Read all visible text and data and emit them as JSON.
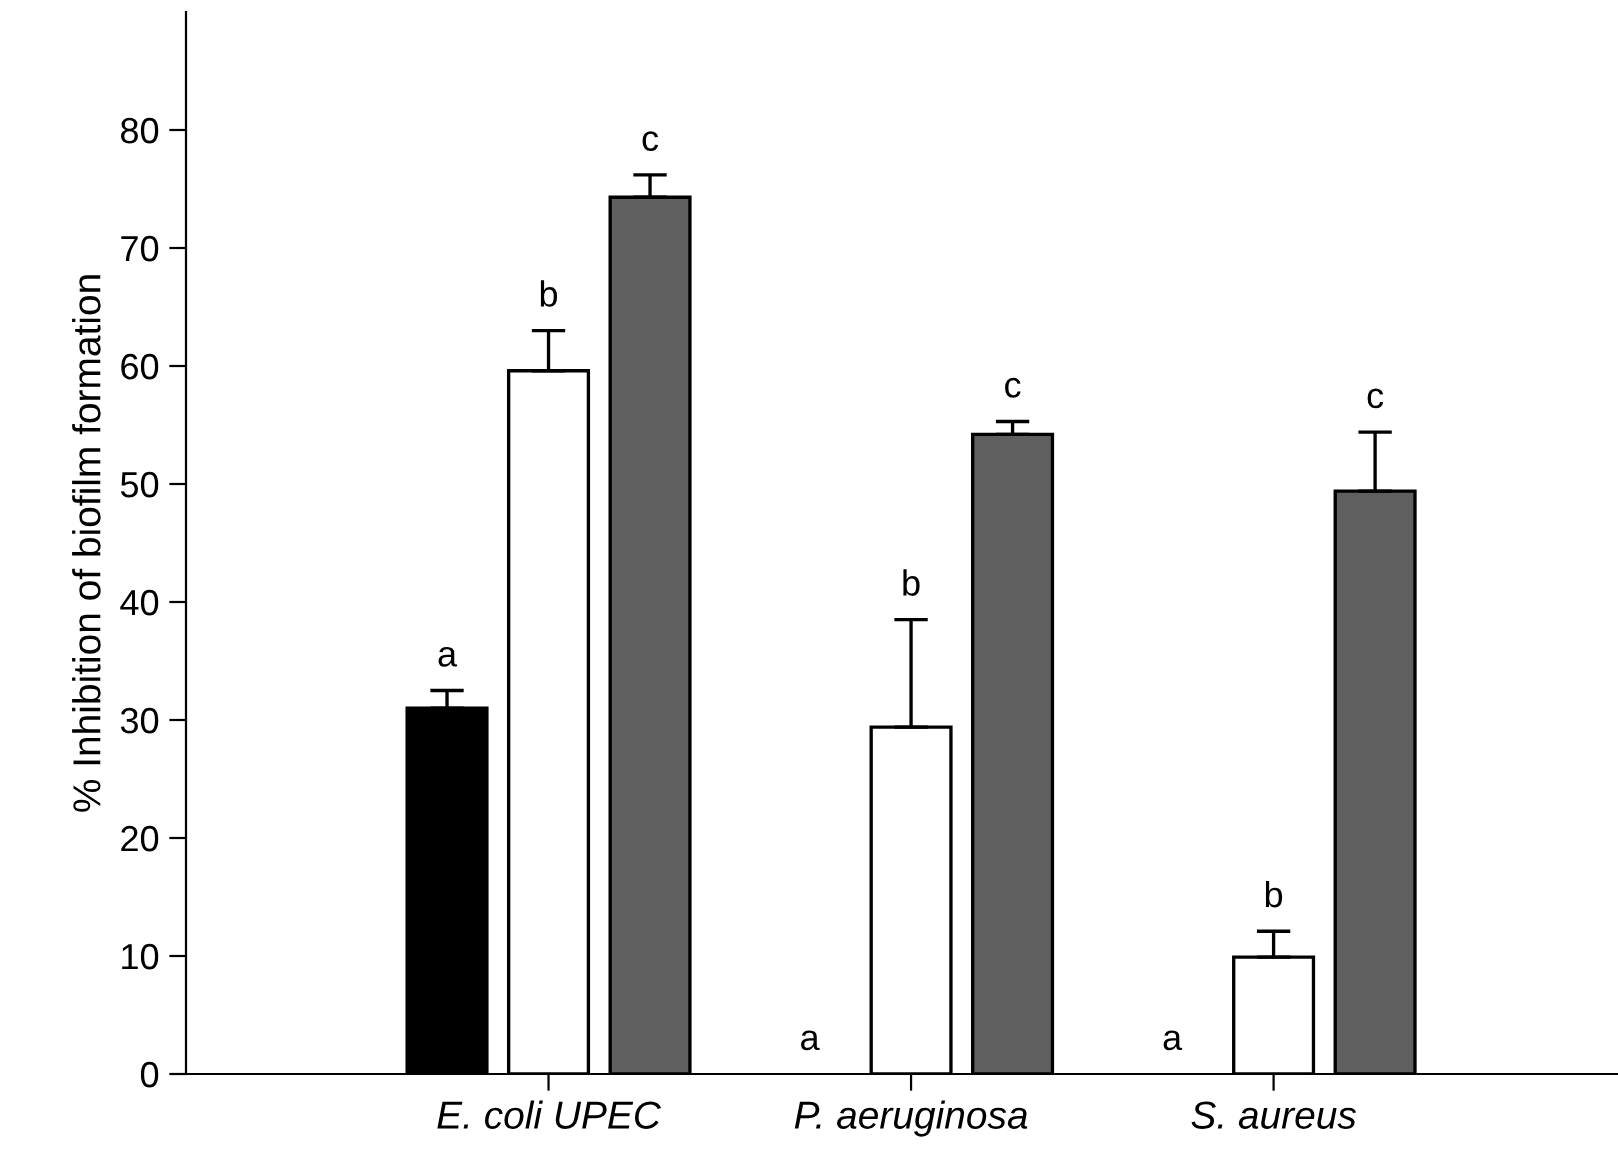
{
  "chart_data": {
    "type": "bar",
    "ylabel": "% Inhibition of biofilm formation",
    "categories": [
      "E. coli UPEC",
      "P. aeruginosa",
      "S. aureus"
    ],
    "series": [
      {
        "color": "#000000",
        "values": [
          31.0,
          0,
          0
        ],
        "errors": [
          [
            31.0,
            32.5
          ],
          null,
          null
        ]
      },
      {
        "color": "#ffffff",
        "values": [
          59.6,
          29.4,
          9.9
        ],
        "errors": [
          [
            59.6,
            63.0
          ],
          [
            29.4,
            38.5
          ],
          [
            9.9,
            12.1
          ]
        ]
      },
      {
        "color": "#5f5f5f",
        "values": [
          74.3,
          54.2,
          49.4
        ],
        "errors": [
          [
            74.3,
            76.2
          ],
          [
            54.2,
            55.3
          ],
          [
            49.4,
            54.4
          ]
        ]
      }
    ],
    "ylim": [
      0,
      90
    ],
    "yticks": [
      0,
      10,
      20,
      30,
      40,
      50,
      60,
      70,
      80
    ],
    "grid": false,
    "legend": false,
    "annotations": [
      "a",
      "b",
      "c",
      "a",
      "b",
      "c",
      "a",
      "b",
      "c"
    ]
  }
}
